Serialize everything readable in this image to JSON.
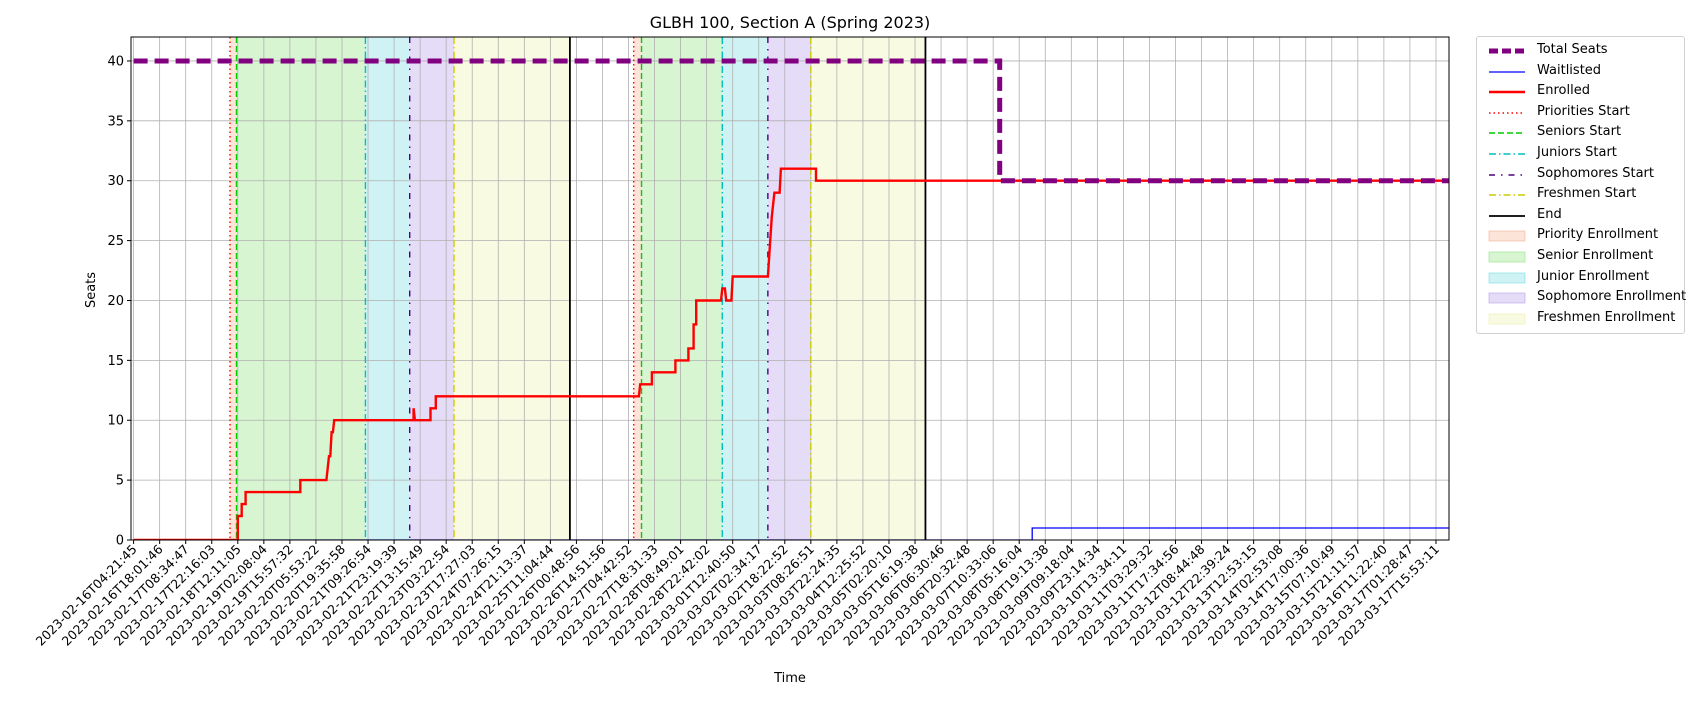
{
  "chart_data": {
    "type": "line",
    "title": "GLBH 100, Section A (Spring 2023)",
    "xlabel": "Time",
    "ylabel": "Seats",
    "ylim": [
      0,
      42
    ],
    "yticks": [
      0,
      5,
      10,
      15,
      20,
      25,
      30,
      35,
      40
    ],
    "grid": true,
    "legend_position": "outside-top-right",
    "x_tick_labels": [
      "2023-02-16T04:21:45",
      "2023-02-16T18:01:46",
      "2023-02-17T08:34:47",
      "2023-02-17T22:16:03",
      "2023-02-18T12:11:05",
      "2023-02-19T02:08:04",
      "2023-02-19T15:57:32",
      "2023-02-20T05:53:22",
      "2023-02-20T19:35:58",
      "2023-02-21T09:26:54",
      "2023-02-21T23:19:39",
      "2023-02-22T13:15:49",
      "2023-02-23T03:22:54",
      "2023-02-23T17:27:03",
      "2023-02-24T07:26:15",
      "2023-02-24T21:13:37",
      "2023-02-25T11:04:44",
      "2023-02-26T00:48:56",
      "2023-02-26T14:51:56",
      "2023-02-27T04:42:52",
      "2023-02-27T18:31:33",
      "2023-02-28T08:49:01",
      "2023-02-28T22:42:02",
      "2023-03-01T12:40:50",
      "2023-03-02T02:34:17",
      "2023-03-02T18:22:52",
      "2023-03-03T08:26:51",
      "2023-03-03T22:24:35",
      "2023-03-04T12:25:52",
      "2023-03-05T02:20:10",
      "2023-03-05T16:19:38",
      "2023-03-06T06:30:46",
      "2023-03-06T20:32:48",
      "2023-03-07T10:33:06",
      "2023-03-08T05:16:04",
      "2023-03-08T19:13:38",
      "2023-03-09T09:18:04",
      "2023-03-09T23:14:34",
      "2023-03-10T13:34:11",
      "2023-03-11T03:29:32",
      "2023-03-11T17:34:56",
      "2023-03-12T08:44:48",
      "2023-03-12T22:39:24",
      "2023-03-13T12:53:15",
      "2023-03-14T02:53:08",
      "2023-03-14T17:00:36",
      "2023-03-15T07:10:49",
      "2023-03-15T21:11:57",
      "2023-03-16T11:22:40",
      "2023-03-17T01:28:47",
      "2023-03-17T15:53:11"
    ],
    "x_range_ticks": [
      -0.1,
      50.5
    ],
    "series": [
      {
        "name": "Total Seats",
        "color": "#800080",
        "style": "dashed-thick",
        "points": [
          [
            0,
            40
          ],
          [
            33.25,
            40
          ],
          [
            33.25,
            30
          ],
          [
            50.5,
            30
          ]
        ]
      },
      {
        "name": "Waitlisted",
        "color": "#0000ff",
        "style": "solid-thin",
        "points": [
          [
            0,
            0
          ],
          [
            34.5,
            0
          ],
          [
            34.5,
            1
          ],
          [
            50.5,
            1
          ]
        ]
      },
      {
        "name": "Enrolled",
        "color": "#ff0000",
        "style": "solid",
        "points": [
          [
            0,
            0
          ],
          [
            3.9,
            0
          ],
          [
            4.0,
            0
          ],
          [
            4.0,
            2
          ],
          [
            4.15,
            2
          ],
          [
            4.15,
            3
          ],
          [
            4.3,
            3
          ],
          [
            4.3,
            4
          ],
          [
            6.4,
            4
          ],
          [
            6.4,
            5
          ],
          [
            7.4,
            5
          ],
          [
            7.5,
            7
          ],
          [
            7.55,
            7
          ],
          [
            7.6,
            9
          ],
          [
            7.65,
            9
          ],
          [
            7.7,
            10
          ],
          [
            10.75,
            10
          ],
          [
            10.75,
            11
          ],
          [
            10.8,
            10
          ],
          [
            11.4,
            10
          ],
          [
            11.4,
            11
          ],
          [
            11.6,
            11
          ],
          [
            11.6,
            12
          ],
          [
            19.4,
            12
          ],
          [
            19.45,
            13
          ],
          [
            19.9,
            13
          ],
          [
            19.9,
            14
          ],
          [
            20.8,
            14
          ],
          [
            20.8,
            15
          ],
          [
            21.3,
            15
          ],
          [
            21.3,
            16
          ],
          [
            21.5,
            16
          ],
          [
            21.5,
            18
          ],
          [
            21.6,
            18
          ],
          [
            21.6,
            20
          ],
          [
            22.55,
            20
          ],
          [
            22.6,
            21
          ],
          [
            22.7,
            21
          ],
          [
            22.75,
            20
          ],
          [
            22.95,
            20
          ],
          [
            23.0,
            22
          ],
          [
            24.35,
            22
          ],
          [
            24.5,
            27
          ],
          [
            24.55,
            28
          ],
          [
            24.6,
            29
          ],
          [
            24.8,
            29
          ],
          [
            24.85,
            31
          ],
          [
            26.2,
            31
          ],
          [
            26.2,
            30
          ],
          [
            50.5,
            30
          ]
        ]
      }
    ],
    "vertical_lines": [
      {
        "name": "Priorities Start",
        "color": "#ff0000",
        "style": "dotted",
        "x": [
          3.7,
          19.2
        ]
      },
      {
        "name": "Seniors Start",
        "color": "#00cc00",
        "style": "dashed",
        "x": [
          3.95,
          19.5
        ]
      },
      {
        "name": "Juniors Start",
        "color": "#00bfbf",
        "style": "dashdot",
        "x": [
          8.9,
          22.6
        ]
      },
      {
        "name": "Sophomores Start",
        "color": "#4b0082",
        "style": "dashdot-sparse",
        "x": [
          10.6,
          24.35
        ]
      },
      {
        "name": "Freshmen Start",
        "color": "#cccc00",
        "style": "dashdot",
        "x": [
          12.3,
          26.0
        ]
      },
      {
        "name": "End",
        "color": "#000000",
        "style": "solid",
        "x": [
          16.75,
          30.4
        ]
      }
    ],
    "shaded_regions": [
      {
        "name": "Priority Enrollment",
        "color": "#f4a582",
        "ranges": [
          [
            3.7,
            3.95
          ],
          [
            19.2,
            19.5
          ]
        ]
      },
      {
        "name": "Senior Enrollment",
        "color": "#7fdd6a",
        "ranges": [
          [
            3.95,
            8.9
          ],
          [
            19.5,
            22.6
          ]
        ]
      },
      {
        "name": "Junior Enrollment",
        "color": "#5fd8dd",
        "ranges": [
          [
            8.9,
            10.6
          ],
          [
            22.6,
            24.35
          ]
        ]
      },
      {
        "name": "Sophomore Enrollment",
        "color": "#a98ee3",
        "ranges": [
          [
            10.6,
            12.3
          ],
          [
            24.35,
            26.0
          ]
        ]
      },
      {
        "name": "Freshmen Enrollment",
        "color": "#eaeea0",
        "ranges": [
          [
            12.3,
            16.75
          ],
          [
            26.0,
            30.4
          ]
        ]
      }
    ],
    "legend": [
      {
        "label": "Total Seats",
        "kind": "line",
        "color": "#800080",
        "dash": "9,4",
        "width": 5
      },
      {
        "label": "Waitlisted",
        "kind": "line",
        "color": "#0000ff",
        "dash": "",
        "width": 1.2
      },
      {
        "label": "Enrolled",
        "kind": "line",
        "color": "#ff0000",
        "dash": "",
        "width": 2.4
      },
      {
        "label": "Priorities Start",
        "kind": "line",
        "color": "#ff0000",
        "dash": "1.5,3",
        "width": 1.4
      },
      {
        "label": "Seniors Start",
        "kind": "line",
        "color": "#00cc00",
        "dash": "6,3",
        "width": 1.4
      },
      {
        "label": "Juniors Start",
        "kind": "line",
        "color": "#00bfbf",
        "dash": "7,3,1.5,3",
        "width": 1.4
      },
      {
        "label": "Sophomores Start",
        "kind": "line",
        "color": "#4b0082",
        "dash": "6,6,1.5,6",
        "width": 1.4
      },
      {
        "label": "Freshmen Start",
        "kind": "line",
        "color": "#cccc00",
        "dash": "7,3,1.5,3",
        "width": 1.4
      },
      {
        "label": "End",
        "kind": "line",
        "color": "#000000",
        "dash": "",
        "width": 1.8
      },
      {
        "label": "Priority Enrollment",
        "kind": "patch",
        "color": "#f4a582"
      },
      {
        "label": "Senior Enrollment",
        "kind": "patch",
        "color": "#7fdd6a"
      },
      {
        "label": "Junior Enrollment",
        "kind": "patch",
        "color": "#5fd8dd"
      },
      {
        "label": "Sophomore Enrollment",
        "kind": "patch",
        "color": "#a98ee3"
      },
      {
        "label": "Freshmen Enrollment",
        "kind": "patch",
        "color": "#eaeea0"
      }
    ]
  }
}
